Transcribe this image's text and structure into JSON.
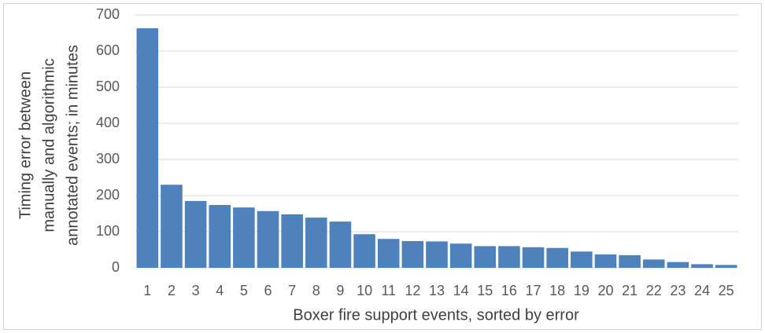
{
  "chart_data": {
    "type": "bar",
    "x_label": "Boxer fire support events, sorted by error",
    "y_label": [
      "Timing error between",
      "manually and algorithmic",
      "annotated events; in minutes"
    ],
    "categories": [
      "1",
      "2",
      "3",
      "4",
      "5",
      "6",
      "7",
      "8",
      "9",
      "10",
      "11",
      "12",
      "13",
      "14",
      "15",
      "16",
      "17",
      "18",
      "19",
      "20",
      "21",
      "22",
      "23",
      "24",
      "25"
    ],
    "values": [
      663,
      230,
      185,
      174,
      167,
      157,
      148,
      139,
      128,
      93,
      80,
      74,
      73,
      67,
      60,
      60,
      57,
      55,
      45,
      37,
      35,
      23,
      16,
      10,
      8
    ],
    "color": "#4f81bd",
    "ylim": [
      0,
      700
    ],
    "yticks": [
      0,
      100,
      200,
      300,
      400,
      500,
      600,
      700
    ],
    "grid": true
  }
}
